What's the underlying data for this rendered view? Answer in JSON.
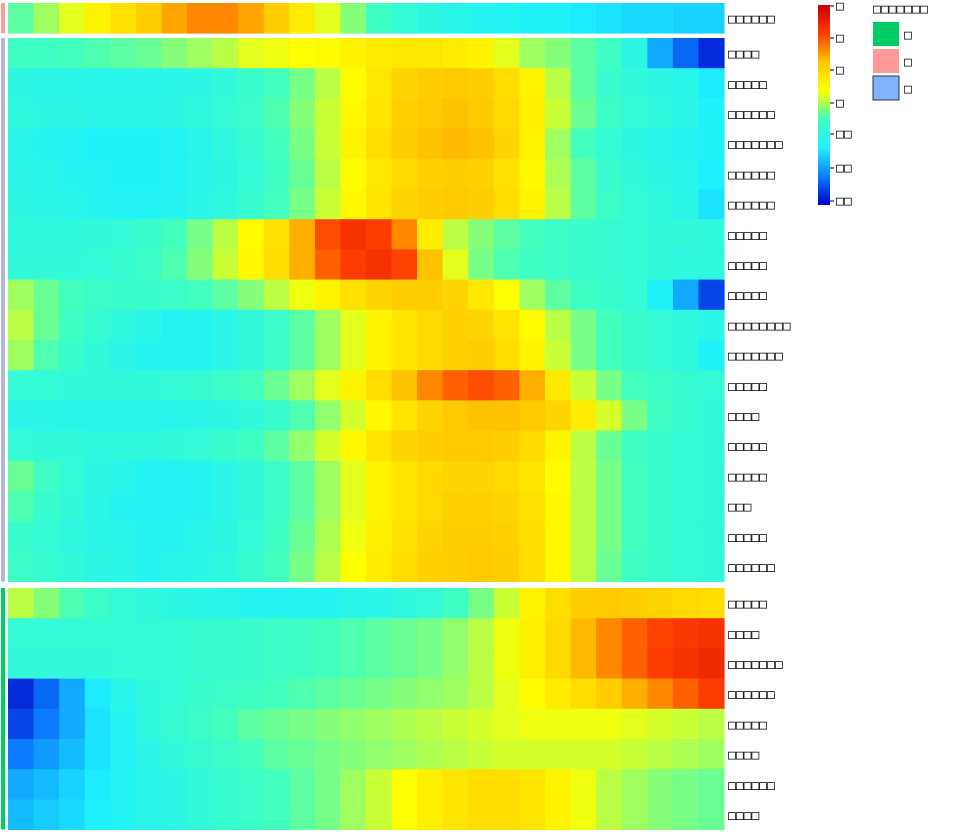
{
  "chart_data": {
    "type": "heatmap",
    "title": "",
    "xlabel": "",
    "ylabel": "",
    "color_scale": {
      "colors": [
        "#0000c8",
        "#0a7cff",
        "#1ef0ff",
        "#40ffbf",
        "#ffff00",
        "#ffc800",
        "#ff3c00",
        "#c80000"
      ],
      "tick_labels": [
        "□",
        "□",
        "□",
        "□",
        "□□",
        "□□",
        "□□"
      ]
    },
    "annotation_legend": {
      "title": "□□□□□□□",
      "entries": [
        {
          "label": "□",
          "color": "#00cc66"
        },
        {
          "label": "□",
          "color": "#ff9a9a"
        },
        {
          "label": "□",
          "color": "#7fb2ff"
        }
      ]
    },
    "groups": [
      {
        "color": "#ff9a9a",
        "rows": 1
      },
      {
        "color": "#b0b8d8",
        "rows": 18
      },
      {
        "color": "#00cc66",
        "rows": 8
      }
    ],
    "rows": [
      {
        "label": "□□□□□□",
        "values": [
          0.45,
          0.5,
          0.55,
          0.6,
          0.65,
          0.7,
          0.75,
          0.78,
          0.78,
          0.75,
          0.7,
          0.62,
          0.55,
          0.48,
          0.42,
          0.38,
          0.35,
          0.33,
          0.32,
          0.31,
          0.3,
          0.3,
          0.28,
          0.27,
          0.26,
          0.26,
          0.25,
          0.25
        ]
      },
      {
        "label": "□□□□",
        "values": [
          0.42,
          0.42,
          0.43,
          0.44,
          0.45,
          0.46,
          0.48,
          0.5,
          0.52,
          0.55,
          0.56,
          0.57,
          0.58,
          0.6,
          0.62,
          0.63,
          0.63,
          0.62,
          0.6,
          0.55,
          0.5,
          0.48,
          0.45,
          0.42,
          0.35,
          0.2,
          0.12,
          0.05
        ]
      },
      {
        "label": "□□□□□",
        "values": [
          0.35,
          0.34,
          0.34,
          0.33,
          0.33,
          0.33,
          0.34,
          0.35,
          0.37,
          0.4,
          0.43,
          0.47,
          0.52,
          0.58,
          0.63,
          0.68,
          0.7,
          0.71,
          0.7,
          0.66,
          0.6,
          0.52,
          0.45,
          0.4,
          0.37,
          0.35,
          0.33,
          0.28
        ]
      },
      {
        "label": "□□□□□□",
        "values": [
          0.36,
          0.35,
          0.35,
          0.34,
          0.34,
          0.34,
          0.35,
          0.36,
          0.38,
          0.41,
          0.44,
          0.48,
          0.53,
          0.59,
          0.64,
          0.69,
          0.71,
          0.72,
          0.71,
          0.67,
          0.61,
          0.53,
          0.46,
          0.41,
          0.38,
          0.36,
          0.34,
          0.3
        ]
      },
      {
        "label": "□□□□□□□",
        "values": [
          0.33,
          0.32,
          0.31,
          0.3,
          0.3,
          0.3,
          0.31,
          0.33,
          0.36,
          0.39,
          0.43,
          0.47,
          0.53,
          0.6,
          0.66,
          0.7,
          0.72,
          0.73,
          0.72,
          0.68,
          0.6,
          0.5,
          0.43,
          0.38,
          0.35,
          0.33,
          0.31,
          0.3
        ]
      },
      {
        "label": "□□□□□□",
        "values": [
          0.34,
          0.33,
          0.32,
          0.31,
          0.3,
          0.3,
          0.31,
          0.33,
          0.35,
          0.38,
          0.42,
          0.46,
          0.52,
          0.58,
          0.63,
          0.67,
          0.69,
          0.7,
          0.69,
          0.65,
          0.59,
          0.51,
          0.45,
          0.4,
          0.37,
          0.35,
          0.33,
          0.29
        ]
      },
      {
        "label": "□□□□□□",
        "values": [
          0.35,
          0.34,
          0.33,
          0.32,
          0.31,
          0.31,
          0.32,
          0.34,
          0.36,
          0.39,
          0.43,
          0.47,
          0.53,
          0.59,
          0.64,
          0.68,
          0.7,
          0.71,
          0.7,
          0.66,
          0.6,
          0.52,
          0.45,
          0.41,
          0.38,
          0.36,
          0.34,
          0.27
        ]
      },
      {
        "label": "□□□□□",
        "values": [
          0.36,
          0.36,
          0.36,
          0.37,
          0.38,
          0.4,
          0.43,
          0.47,
          0.52,
          0.58,
          0.65,
          0.74,
          0.84,
          0.88,
          0.86,
          0.78,
          0.62,
          0.52,
          0.48,
          0.45,
          0.43,
          0.41,
          0.4,
          0.39,
          0.38,
          0.37,
          0.37,
          0.36
        ]
      },
      {
        "label": "□□□□□",
        "values": [
          0.37,
          0.37,
          0.37,
          0.38,
          0.39,
          0.41,
          0.44,
          0.48,
          0.53,
          0.59,
          0.66,
          0.74,
          0.82,
          0.86,
          0.88,
          0.85,
          0.72,
          0.55,
          0.47,
          0.44,
          0.42,
          0.41,
          0.4,
          0.39,
          0.38,
          0.37,
          0.36,
          0.36
        ]
      },
      {
        "label": "□□□□□",
        "values": [
          0.5,
          0.46,
          0.43,
          0.41,
          0.4,
          0.4,
          0.41,
          0.43,
          0.45,
          0.48,
          0.52,
          0.56,
          0.6,
          0.65,
          0.68,
          0.7,
          0.7,
          0.68,
          0.63,
          0.57,
          0.5,
          0.45,
          0.42,
          0.4,
          0.38,
          0.3,
          0.2,
          0.08
        ]
      },
      {
        "label": "□□□□□□□□",
        "values": [
          0.52,
          0.46,
          0.42,
          0.39,
          0.36,
          0.34,
          0.31,
          0.32,
          0.34,
          0.37,
          0.41,
          0.45,
          0.5,
          0.55,
          0.6,
          0.64,
          0.67,
          0.69,
          0.68,
          0.64,
          0.58,
          0.52,
          0.47,
          0.43,
          0.4,
          0.38,
          0.36,
          0.34
        ]
      },
      {
        "label": "□□□□□□□",
        "values": [
          0.5,
          0.44,
          0.4,
          0.37,
          0.34,
          0.32,
          0.31,
          0.32,
          0.34,
          0.37,
          0.41,
          0.45,
          0.5,
          0.55,
          0.6,
          0.64,
          0.67,
          0.69,
          0.7,
          0.66,
          0.6,
          0.53,
          0.47,
          0.43,
          0.4,
          0.38,
          0.36,
          0.3
        ]
      },
      {
        "label": "□□□□□",
        "values": [
          0.38,
          0.38,
          0.37,
          0.37,
          0.37,
          0.37,
          0.38,
          0.39,
          0.41,
          0.43,
          0.46,
          0.5,
          0.55,
          0.6,
          0.66,
          0.72,
          0.78,
          0.82,
          0.84,
          0.82,
          0.74,
          0.63,
          0.53,
          0.47,
          0.43,
          0.41,
          0.39,
          0.38
        ]
      },
      {
        "label": "□□□□",
        "values": [
          0.34,
          0.34,
          0.33,
          0.33,
          0.33,
          0.33,
          0.33,
          0.34,
          0.35,
          0.37,
          0.4,
          0.44,
          0.49,
          0.54,
          0.59,
          0.64,
          0.68,
          0.71,
          0.72,
          0.72,
          0.71,
          0.68,
          0.62,
          0.54,
          0.47,
          0.42,
          0.39,
          0.37
        ]
      },
      {
        "label": "□□□□□",
        "values": [
          0.38,
          0.37,
          0.37,
          0.36,
          0.36,
          0.36,
          0.37,
          0.38,
          0.4,
          0.42,
          0.45,
          0.49,
          0.54,
          0.59,
          0.64,
          0.68,
          0.7,
          0.71,
          0.71,
          0.7,
          0.67,
          0.6,
          0.52,
          0.46,
          0.42,
          0.4,
          0.38,
          0.37
        ]
      },
      {
        "label": "□□□□□",
        "values": [
          0.46,
          0.42,
          0.38,
          0.35,
          0.33,
          0.31,
          0.31,
          0.32,
          0.34,
          0.37,
          0.41,
          0.45,
          0.5,
          0.55,
          0.6,
          0.64,
          0.67,
          0.68,
          0.68,
          0.67,
          0.64,
          0.58,
          0.52,
          0.47,
          0.43,
          0.4,
          0.38,
          0.37
        ]
      },
      {
        "label": "□□□",
        "values": [
          0.44,
          0.4,
          0.37,
          0.34,
          0.32,
          0.31,
          0.31,
          0.32,
          0.34,
          0.37,
          0.41,
          0.45,
          0.5,
          0.55,
          0.6,
          0.64,
          0.67,
          0.69,
          0.69,
          0.68,
          0.65,
          0.59,
          0.52,
          0.47,
          0.43,
          0.4,
          0.38,
          0.37
        ]
      },
      {
        "label": "□□□□□",
        "values": [
          0.4,
          0.38,
          0.36,
          0.34,
          0.33,
          0.32,
          0.32,
          0.33,
          0.35,
          0.38,
          0.42,
          0.46,
          0.51,
          0.56,
          0.61,
          0.65,
          0.68,
          0.7,
          0.7,
          0.69,
          0.66,
          0.59,
          0.52,
          0.47,
          0.43,
          0.4,
          0.38,
          0.37
        ]
      },
      {
        "label": "□□□□□□",
        "values": [
          0.41,
          0.39,
          0.37,
          0.35,
          0.34,
          0.32,
          0.33,
          0.34,
          0.36,
          0.39,
          0.43,
          0.47,
          0.52,
          0.57,
          0.62,
          0.66,
          0.69,
          0.7,
          0.71,
          0.7,
          0.66,
          0.59,
          0.52,
          0.46,
          0.42,
          0.4,
          0.38,
          0.37
        ]
      },
      {
        "label": "□□□□□",
        "values": [
          0.52,
          0.48,
          0.44,
          0.41,
          0.38,
          0.36,
          0.35,
          0.34,
          0.33,
          0.32,
          0.32,
          0.32,
          0.32,
          0.33,
          0.34,
          0.36,
          0.38,
          0.42,
          0.47,
          0.53,
          0.6,
          0.66,
          0.7,
          0.71,
          0.7,
          0.68,
          0.67,
          0.66
        ]
      },
      {
        "label": "□□□□",
        "values": [
          0.38,
          0.38,
          0.38,
          0.38,
          0.38,
          0.38,
          0.38,
          0.39,
          0.39,
          0.4,
          0.41,
          0.42,
          0.43,
          0.44,
          0.45,
          0.46,
          0.47,
          0.49,
          0.52,
          0.56,
          0.61,
          0.67,
          0.73,
          0.78,
          0.82,
          0.85,
          0.87,
          0.88
        ]
      },
      {
        "label": "□□□□□□□",
        "values": [
          0.37,
          0.37,
          0.37,
          0.37,
          0.38,
          0.38,
          0.38,
          0.39,
          0.39,
          0.4,
          0.41,
          0.42,
          0.43,
          0.44,
          0.45,
          0.46,
          0.47,
          0.49,
          0.52,
          0.56,
          0.61,
          0.67,
          0.73,
          0.78,
          0.82,
          0.86,
          0.88,
          0.9
        ]
      },
      {
        "label": "□□□□□□",
        "values": [
          0.05,
          0.12,
          0.2,
          0.28,
          0.33,
          0.36,
          0.38,
          0.4,
          0.41,
          0.42,
          0.43,
          0.44,
          0.45,
          0.46,
          0.47,
          0.48,
          0.49,
          0.5,
          0.52,
          0.55,
          0.58,
          0.62,
          0.66,
          0.7,
          0.74,
          0.78,
          0.82,
          0.86
        ]
      },
      {
        "label": "□□□□□",
        "values": [
          0.08,
          0.14,
          0.2,
          0.27,
          0.32,
          0.36,
          0.39,
          0.41,
          0.43,
          0.45,
          0.46,
          0.47,
          0.48,
          0.49,
          0.5,
          0.51,
          0.52,
          0.53,
          0.54,
          0.55,
          0.56,
          0.56,
          0.56,
          0.56,
          0.55,
          0.54,
          0.53,
          0.52
        ]
      },
      {
        "label": "□□□□",
        "values": [
          0.14,
          0.18,
          0.22,
          0.27,
          0.31,
          0.34,
          0.37,
          0.39,
          0.41,
          0.43,
          0.45,
          0.46,
          0.47,
          0.48,
          0.49,
          0.5,
          0.51,
          0.52,
          0.53,
          0.54,
          0.54,
          0.54,
          0.54,
          0.54,
          0.53,
          0.52,
          0.51,
          0.5
        ]
      },
      {
        "label": "□□□□□□",
        "values": [
          0.2,
          0.22,
          0.25,
          0.28,
          0.31,
          0.33,
          0.35,
          0.37,
          0.39,
          0.41,
          0.43,
          0.45,
          0.47,
          0.5,
          0.53,
          0.57,
          0.61,
          0.64,
          0.66,
          0.66,
          0.64,
          0.6,
          0.56,
          0.52,
          0.5,
          0.48,
          0.47,
          0.46
        ]
      },
      {
        "label": "□□□□",
        "values": [
          0.22,
          0.24,
          0.26,
          0.29,
          0.31,
          0.33,
          0.35,
          0.37,
          0.39,
          0.41,
          0.43,
          0.45,
          0.47,
          0.5,
          0.53,
          0.57,
          0.61,
          0.64,
          0.66,
          0.66,
          0.64,
          0.6,
          0.56,
          0.52,
          0.5,
          0.48,
          0.47,
          0.46
        ]
      }
    ]
  }
}
